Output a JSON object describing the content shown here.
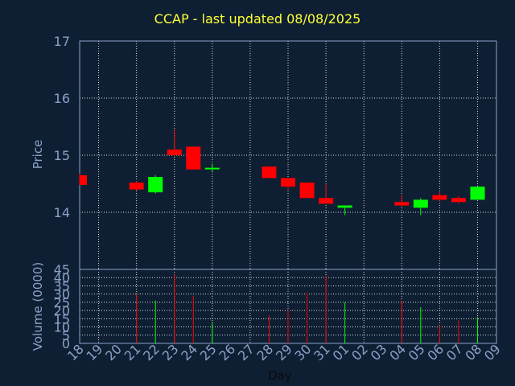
{
  "chart_data": [
    {
      "type": "candlestick",
      "title": "CCAP - last updated 08/08/2025",
      "ylabel": "Price",
      "ylim": [
        13,
        17
      ],
      "y_ticks": [
        "14",
        "15",
        "16",
        "17"
      ],
      "grid": true,
      "x_ticks": [
        "18",
        "19",
        "20",
        "21",
        "22",
        "23",
        "24",
        "25",
        "26",
        "27",
        "28",
        "29",
        "30",
        "31",
        "01",
        "02",
        "03",
        "04",
        "05",
        "06",
        "07",
        "08",
        "09"
      ],
      "candles": [
        {
          "day": "18",
          "open": 14.65,
          "high": 14.68,
          "low": 14.48,
          "close": 14.48
        },
        {
          "day": "21",
          "open": 14.52,
          "high": 14.55,
          "low": 14.38,
          "close": 14.4
        },
        {
          "day": "22",
          "open": 14.35,
          "high": 14.65,
          "low": 14.33,
          "close": 14.62
        },
        {
          "day": "23",
          "open": 15.1,
          "high": 15.45,
          "low": 14.98,
          "close": 15.0
        },
        {
          "day": "24",
          "open": 15.15,
          "high": 15.15,
          "low": 14.75,
          "close": 14.75
        },
        {
          "day": "25",
          "open": 14.76,
          "high": 14.85,
          "low": 14.7,
          "close": 14.78
        },
        {
          "day": "28",
          "open": 14.8,
          "high": 14.8,
          "low": 14.6,
          "close": 14.6
        },
        {
          "day": "29",
          "open": 14.6,
          "high": 14.6,
          "low": 14.4,
          "close": 14.45
        },
        {
          "day": "30",
          "open": 14.52,
          "high": 14.52,
          "low": 14.25,
          "close": 14.25
        },
        {
          "day": "31",
          "open": 14.25,
          "high": 14.5,
          "low": 14.15,
          "close": 14.15
        },
        {
          "day": "01",
          "open": 14.08,
          "high": 14.12,
          "low": 13.95,
          "close": 14.12
        },
        {
          "day": "04",
          "open": 14.18,
          "high": 14.3,
          "low": 14.1,
          "close": 14.12
        },
        {
          "day": "05",
          "open": 14.08,
          "high": 14.25,
          "low": 13.95,
          "close": 14.22
        },
        {
          "day": "06",
          "open": 14.3,
          "high": 14.35,
          "low": 14.2,
          "close": 14.22
        },
        {
          "day": "07",
          "open": 14.25,
          "high": 14.28,
          "low": 14.15,
          "close": 14.18
        },
        {
          "day": "08",
          "open": 14.22,
          "high": 14.45,
          "low": 14.22,
          "close": 14.45
        }
      ],
      "up_color": "#00ff00",
      "down_color": "#ff0000"
    },
    {
      "type": "bar",
      "ylabel": "Volume (0000)",
      "xlabel": "Day",
      "ylim": [
        0,
        45
      ],
      "y_ticks": [
        "0",
        "5",
        "10",
        "15",
        "20",
        "25",
        "30",
        "35",
        "40",
        "45"
      ],
      "categories": [
        "21",
        "22",
        "23",
        "24",
        "25",
        "28",
        "29",
        "30",
        "31",
        "01",
        "04",
        "05",
        "06",
        "07",
        "08"
      ],
      "values": [
        30,
        26,
        42,
        29,
        13,
        17,
        20,
        31,
        41,
        25,
        26,
        22,
        11,
        14,
        16
      ],
      "bar_colors": [
        "red",
        "green",
        "red",
        "red",
        "green",
        "red",
        "red",
        "red",
        "red",
        "green",
        "red",
        "green",
        "red",
        "red",
        "green"
      ]
    }
  ]
}
